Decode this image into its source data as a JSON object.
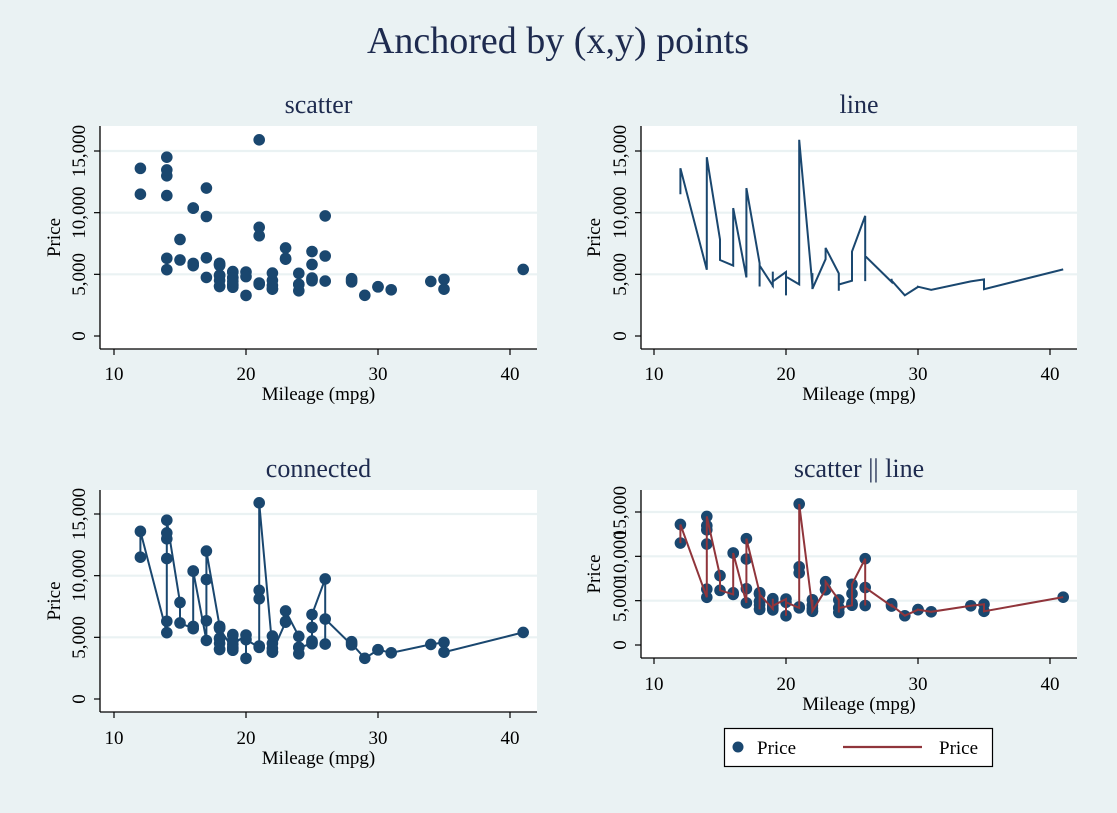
{
  "figure": {
    "title": "Anchored by (x,y) points",
    "background_color": "#eaf2f3",
    "plot_background_color": "#ffffff",
    "grid_color": "#eaf2f3",
    "marker_color": "#1a476f",
    "line_color": "#1a476f",
    "overlay_line_color": "#90353b"
  },
  "legend": {
    "items": [
      {
        "label": "Price",
        "symbol": "marker",
        "color": "#1a476f"
      },
      {
        "label": "Price",
        "symbol": "line",
        "color": "#90353b"
      }
    ],
    "placement": "bottom"
  },
  "chart_data": [
    {
      "id": "scatter",
      "type": "scatter",
      "title": "scatter",
      "xlabel": "Mileage (mpg)",
      "ylabel": "Price",
      "xlim": [
        9,
        42
      ],
      "ylim": [
        -1000,
        17000
      ],
      "xticks": [
        10,
        20,
        30,
        40
      ],
      "xtick_labels": [
        "10",
        "20",
        "30",
        "40"
      ],
      "yticks": [
        0,
        5000,
        10000,
        15000
      ],
      "ytick_labels": [
        "0",
        "5,000",
        "10,000",
        "15,000"
      ],
      "grid": true,
      "series": [
        {
          "name": "Price",
          "style": "marker",
          "color": "#1a476f",
          "source": "points"
        }
      ]
    },
    {
      "id": "line",
      "type": "line",
      "title": "line",
      "xlabel": "Mileage (mpg)",
      "ylabel": "Price",
      "xlim": [
        9,
        42
      ],
      "ylim": [
        -1000,
        17000
      ],
      "xticks": [
        10,
        20,
        30,
        40
      ],
      "xtick_labels": [
        "10",
        "20",
        "30",
        "40"
      ],
      "yticks": [
        0,
        5000,
        10000,
        15000
      ],
      "ytick_labels": [
        "0",
        "5,000",
        "10,000",
        "15,000"
      ],
      "grid": true,
      "series": [
        {
          "name": "Price",
          "style": "line",
          "color": "#1a476f",
          "source": "points"
        }
      ]
    },
    {
      "id": "connected",
      "type": "line",
      "title": "connected",
      "xlabel": "Mileage (mpg)",
      "ylabel": "Price",
      "xlim": [
        9,
        42
      ],
      "ylim": [
        -1000,
        17000
      ],
      "xticks": [
        10,
        20,
        30,
        40
      ],
      "xtick_labels": [
        "10",
        "20",
        "30",
        "40"
      ],
      "yticks": [
        0,
        5000,
        10000,
        15000
      ],
      "ytick_labels": [
        "0",
        "5,000",
        "10,000",
        "15,000"
      ],
      "grid": true,
      "series": [
        {
          "name": "Price",
          "style": "connected",
          "color": "#1a476f",
          "source": "points"
        }
      ]
    },
    {
      "id": "scatter-line",
      "type": "scatter",
      "title": "scatter || line",
      "xlabel": "Mileage (mpg)",
      "ylabel": "Price",
      "xlim": [
        9,
        42
      ],
      "ylim": [
        -1000,
        17000
      ],
      "xticks": [
        10,
        20,
        30,
        40
      ],
      "xtick_labels": [
        "10",
        "20",
        "30",
        "40"
      ],
      "yticks": [
        0,
        5000,
        10000,
        15000
      ],
      "ytick_labels": [
        "0",
        "5,000",
        "10,000",
        "15,000"
      ],
      "grid": true,
      "series": [
        {
          "name": "Price",
          "style": "marker",
          "color": "#1a476f",
          "source": "points"
        },
        {
          "name": "Price",
          "style": "line",
          "color": "#90353b",
          "source": "points"
        }
      ]
    }
  ],
  "points": {
    "x": [
      12,
      12,
      14,
      14,
      14,
      14,
      14,
      14,
      15,
      15,
      16,
      16,
      16,
      16,
      17,
      17,
      17,
      17,
      18,
      18,
      18,
      18,
      18,
      18,
      18,
      18,
      18,
      19,
      19,
      19,
      19,
      19,
      19,
      19,
      19,
      20,
      20,
      20,
      21,
      21,
      21,
      21,
      21,
      22,
      22,
      22,
      22,
      22,
      23,
      23,
      23,
      24,
      24,
      24,
      24,
      25,
      25,
      25,
      25,
      25,
      26,
      26,
      26,
      28,
      28,
      28,
      29,
      30,
      30,
      31,
      34,
      35,
      35,
      41
    ],
    "y": [
      11497,
      13594,
      5379,
      6303,
      11385,
      12990,
      13466,
      14500,
      7827,
      6165,
      5705,
      5886,
      10371,
      10372,
      4749,
      6342,
      9690,
      11995,
      5899,
      4010,
      5788,
      4516,
      4890,
      4060,
      5798,
      4934,
      5719,
      4082,
      5172,
      3955,
      4733,
      4181,
      5222,
      4723,
      4424,
      5189,
      3291,
      4816,
      4187,
      4296,
      8129,
      8814,
      15906,
      4099,
      3799,
      4504,
      5104,
      3829,
      6229,
      6295,
      7140,
      5079,
      3667,
      4195,
      4172,
      4482,
      4589,
      4697,
      5799,
      6850,
      9735,
      4453,
      6486,
      4389,
      4647,
      4499,
      3299,
      3984,
      3995,
      3748,
      4425,
      4589,
      3798,
      5397
    ]
  }
}
